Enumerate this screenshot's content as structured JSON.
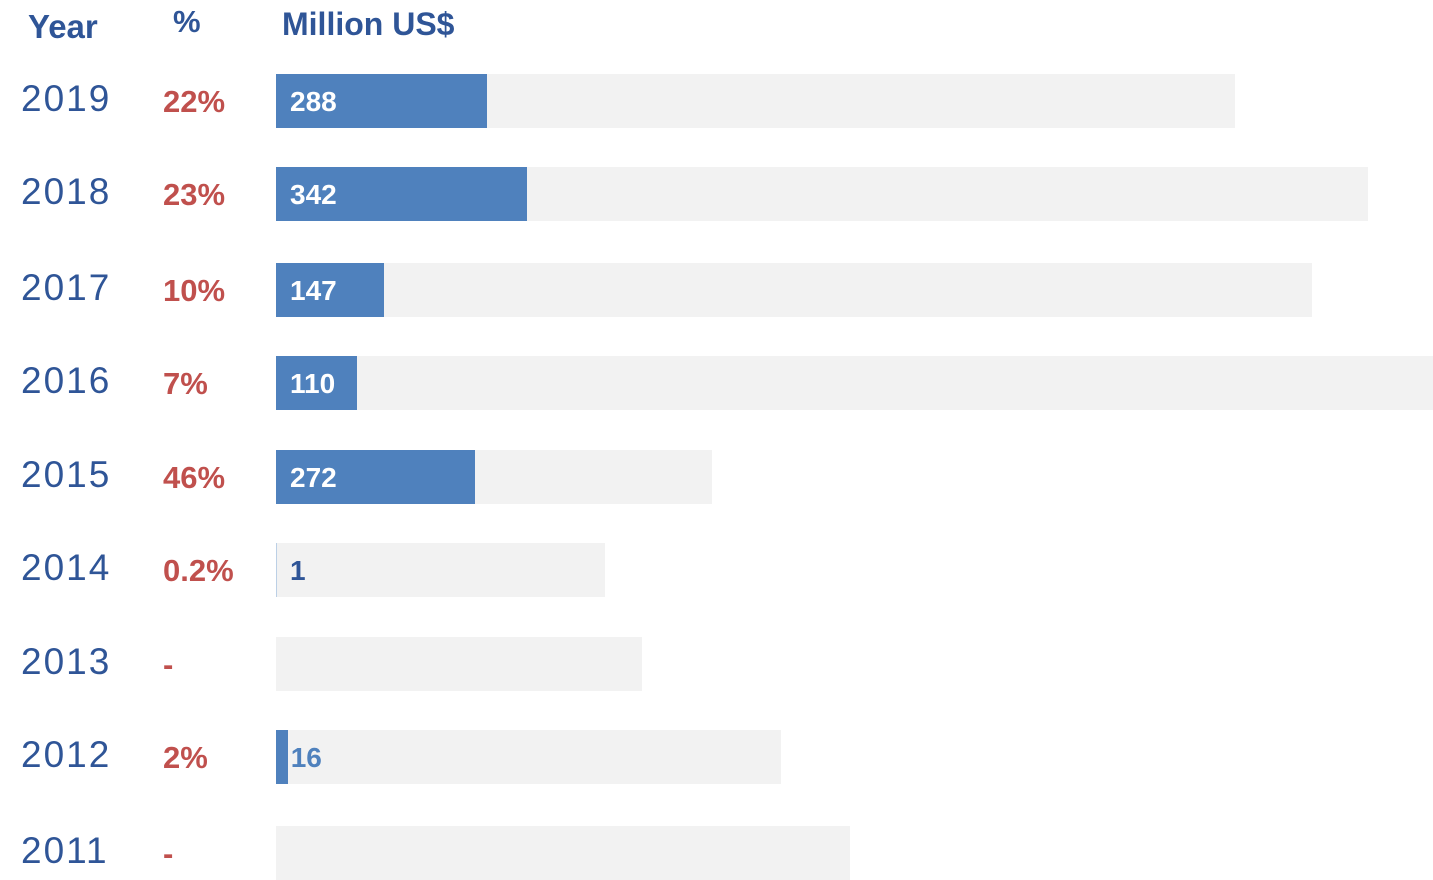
{
  "chart_data": {
    "type": "bar",
    "orientation": "horizontal",
    "headers": {
      "year": "Year",
      "percent": "%",
      "value": "Million US$"
    },
    "rows": [
      {
        "year": "2019",
        "percent": "22%",
        "value": 288,
        "label": "288",
        "total": 1309
      },
      {
        "year": "2018",
        "percent": "23%",
        "value": 342,
        "label": "342",
        "total": 1491
      },
      {
        "year": "2017",
        "percent": "10%",
        "value": 147,
        "label": "147",
        "total": 1415
      },
      {
        "year": "2016",
        "percent": "7%",
        "value": 110,
        "label": "110",
        "total": 1580
      },
      {
        "year": "2015",
        "percent": "46%",
        "value": 272,
        "label": "272",
        "total": 595
      },
      {
        "year": "2014",
        "percent": "0.2%",
        "value": 1,
        "label": "1",
        "total": 449
      },
      {
        "year": "2013",
        "percent": "-",
        "value": 0,
        "label": "",
        "total": 500
      },
      {
        "year": "2012",
        "percent": "2%",
        "value": 16,
        "label": "16",
        "total": 689
      },
      {
        "year": "2011",
        "percent": "-",
        "value": 0,
        "label": "",
        "total": 784
      }
    ],
    "colors": {
      "bar": "#4f81bd",
      "track": "#f2f2f2",
      "year": "#2f5597",
      "percent": "#c0504d"
    }
  }
}
